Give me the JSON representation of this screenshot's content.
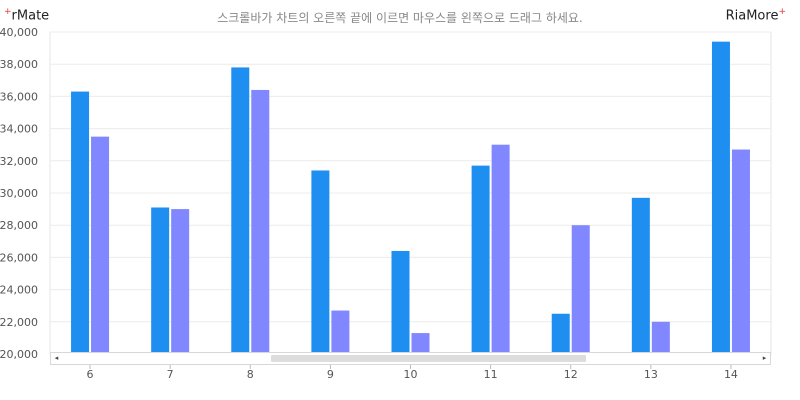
{
  "brand": {
    "left": "rMate",
    "right": "RiaMore",
    "star_glyph": "+"
  },
  "chart_data": {
    "type": "bar",
    "title": "스크롤바가 차트의 오른쪽 끝에 이르면 마우스를 왼쪽으로 드래그 하세요.",
    "categories": [
      "6",
      "7",
      "8",
      "9",
      "10",
      "11",
      "12",
      "13",
      "14"
    ],
    "series": [
      {
        "values": [
          36300,
          29100,
          37800,
          31400,
          26400,
          31700,
          22500,
          29700,
          39400
        ],
        "color": "#1f8ef1"
      },
      {
        "values": [
          33500,
          29000,
          36400,
          22700,
          21300,
          33000,
          28000,
          22000,
          32700
        ],
        "color": "#8087ff"
      }
    ],
    "ylim": [
      20000,
      40000
    ],
    "yticks": [
      "20,000",
      "22,000",
      "24,000",
      "26,000",
      "28,000",
      "30,000",
      "32,000",
      "34,000",
      "36,000",
      "38,000",
      "40,000"
    ],
    "grid": true,
    "xlabel": "",
    "ylabel": ""
  },
  "scrollbar": {
    "left_arrow": "◂",
    "right_arrow": "▸"
  }
}
